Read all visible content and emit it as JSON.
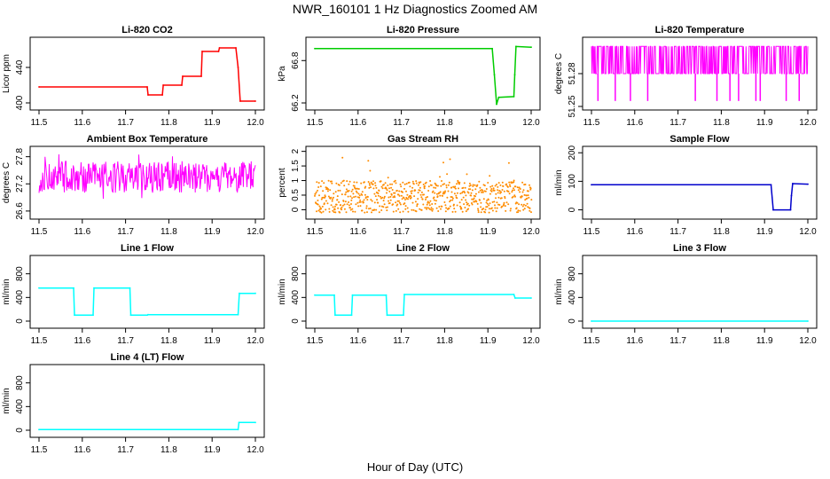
{
  "main_title": "NWR_160101  1 Hz Diagnostics Zoomed AM",
  "xlabel": "Hour of Day (UTC)",
  "chart_data": [
    {
      "type": "line",
      "title": "Li-820 CO2",
      "ylabel": "Licor ppm",
      "color": "#ff0000",
      "xlim": [
        11.5,
        12.0
      ],
      "ylim": [
        396,
        470
      ],
      "xticks": [
        "11.5",
        "11.6",
        "11.7",
        "11.8",
        "11.9",
        "12.0"
      ],
      "yticks": [
        400,
        440
      ],
      "series": [
        {
          "x": [
            11.5,
            11.75,
            11.752,
            11.785,
            11.787,
            11.83,
            11.832,
            11.875,
            11.877,
            11.915,
            11.917,
            11.955,
            11.96,
            11.965,
            12.0
          ],
          "y": [
            418,
            418,
            409,
            409,
            420,
            420,
            430,
            430,
            458,
            458,
            462,
            462,
            440,
            402,
            402
          ]
        }
      ]
    },
    {
      "type": "line",
      "title": "Li-820 Pressure",
      "ylabel": "kPa",
      "color": "#00cc00",
      "xlim": [
        11.5,
        12.0
      ],
      "ylim": [
        66.15,
        67.08
      ],
      "xticks": [
        "11.5",
        "11.6",
        "11.7",
        "11.8",
        "11.9",
        "12.0"
      ],
      "yticks": [
        "66.2",
        "66.8"
      ],
      "series": [
        {
          "x": [
            11.5,
            11.91,
            11.915,
            11.92,
            11.925,
            11.96,
            11.962,
            11.965,
            12.0
          ],
          "y": [
            66.97,
            66.97,
            66.6,
            66.18,
            66.28,
            66.29,
            66.6,
            67.0,
            66.99
          ]
        }
      ]
    },
    {
      "type": "line",
      "title": "Li-820 Temperature",
      "ylabel": "degrees C",
      "color": "#ff00ff",
      "xlim": [
        11.5,
        12.0
      ],
      "ylim": [
        51.25,
        51.31
      ],
      "xticks": [
        "11.5",
        "11.6",
        "11.7",
        "11.8",
        "11.9",
        "12.0"
      ],
      "yticks": [
        "51.25",
        "51.28"
      ],
      "series": [
        {
          "name": "dense",
          "x_range": [
            11.5,
            12.0
          ],
          "y_levels": [
            51.28,
            51.305
          ],
          "dips": [
            11.515,
            11.555,
            11.59,
            11.63,
            11.74,
            11.79,
            11.82,
            11.84,
            11.88,
            11.89,
            11.95,
            11.98
          ],
          "dip_value": 51.255
        }
      ]
    },
    {
      "type": "line",
      "title": "Ambient Box Temperature",
      "ylabel": "degrees C",
      "color": "#ff00ff",
      "xlim": [
        11.5,
        12.0
      ],
      "ylim": [
        26.5,
        27.95
      ],
      "xticks": [
        "11.5",
        "11.6",
        "11.7",
        "11.8",
        "11.9",
        "12.0"
      ],
      "yticks": [
        "26.6",
        "27.2",
        "27.8"
      ],
      "series": [
        {
          "name": "noise",
          "x_range": [
            11.5,
            12.0
          ],
          "center": 27.35,
          "spread": 0.35
        }
      ]
    },
    {
      "type": "scatter",
      "title": "Gas Stream RH",
      "ylabel": "percent",
      "color": "#ff8c00",
      "xlim": [
        11.5,
        12.0
      ],
      "ylim": [
        -0.2,
        2.05
      ],
      "xticks": [
        "11.5",
        "11.6",
        "11.7",
        "11.8",
        "11.9",
        "12.0"
      ],
      "yticks": [
        0.0,
        0.5,
        1.0,
        1.5,
        2.0
      ],
      "series": [
        {
          "name": "noise",
          "x_range": [
            11.5,
            12.0
          ],
          "center": 0.45,
          "spread": 0.55
        }
      ]
    },
    {
      "type": "line",
      "title": "Sample Flow",
      "ylabel": "ml/min",
      "color": "#0000cc",
      "xlim": [
        11.5,
        12.0
      ],
      "ylim": [
        -20,
        210
      ],
      "xticks": [
        "11.5",
        "11.6",
        "11.7",
        "11.8",
        "11.9",
        "12.0"
      ],
      "yticks": [
        0,
        100,
        200
      ],
      "series": [
        {
          "x": [
            11.5,
            11.915,
            11.92,
            11.96,
            11.962,
            11.965,
            12.0
          ],
          "y": [
            88,
            88,
            0,
            0,
            50,
            92,
            90
          ]
        }
      ]
    },
    {
      "type": "line",
      "title": "Line 1 Flow",
      "ylabel": "ml/min",
      "color": "#00ffff",
      "xlim": [
        11.5,
        12.0
      ],
      "ylim": [
        -60,
        1050
      ],
      "xticks": [
        "11.5",
        "11.6",
        "11.7",
        "11.8",
        "11.9",
        "12.0"
      ],
      "yticks": [
        0,
        400,
        800
      ],
      "series": [
        {
          "x": [
            11.5,
            11.58,
            11.582,
            11.625,
            11.627,
            11.71,
            11.712,
            11.75,
            11.752,
            11.96,
            11.963,
            12.0
          ],
          "y": [
            560,
            560,
            100,
            100,
            560,
            560,
            100,
            100,
            110,
            110,
            470,
            470
          ]
        }
      ]
    },
    {
      "type": "line",
      "title": "Line 2 Flow",
      "ylabel": "ml/min",
      "color": "#00ffff",
      "xlim": [
        11.5,
        12.0
      ],
      "ylim": [
        -60,
        1050
      ],
      "xticks": [
        "11.5",
        "11.6",
        "11.7",
        "11.8",
        "11.9",
        "12.0"
      ],
      "yticks": [
        0,
        400,
        800
      ],
      "series": [
        {
          "x": [
            11.5,
            11.545,
            11.547,
            11.585,
            11.587,
            11.665,
            11.667,
            11.705,
            11.707,
            11.96,
            11.963,
            12.0
          ],
          "y": [
            440,
            440,
            100,
            100,
            440,
            440,
            100,
            100,
            450,
            450,
            390,
            390
          ]
        }
      ]
    },
    {
      "type": "line",
      "title": "Line 3 Flow",
      "ylabel": "ml/min",
      "color": "#00ffff",
      "xlim": [
        11.5,
        12.0
      ],
      "ylim": [
        -60,
        1050
      ],
      "xticks": [
        "11.5",
        "11.6",
        "11.7",
        "11.8",
        "11.9",
        "12.0"
      ],
      "yticks": [
        0,
        400,
        800
      ],
      "series": [
        {
          "x": [
            11.5,
            12.0
          ],
          "y": [
            0,
            0
          ]
        }
      ]
    },
    {
      "type": "line",
      "title": "Line 4 (LT) Flow",
      "ylabel": "ml/min",
      "color": "#00ffff",
      "xlim": [
        11.5,
        12.0
      ],
      "ylim": [
        -60,
        1050
      ],
      "xticks": [
        "11.5",
        "11.6",
        "11.7",
        "11.8",
        "11.9",
        "12.0"
      ],
      "yticks": [
        0,
        400,
        800
      ],
      "series": [
        {
          "x": [
            11.5,
            11.96,
            11.962,
            12.0
          ],
          "y": [
            10,
            10,
            130,
            130
          ]
        }
      ]
    }
  ]
}
